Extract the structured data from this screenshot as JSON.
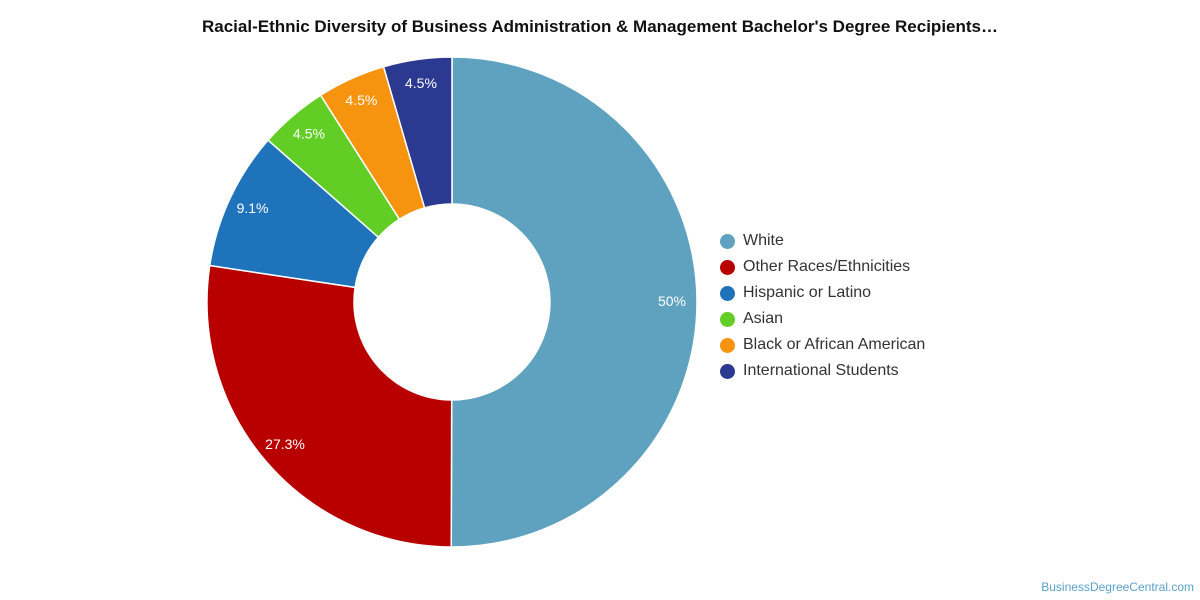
{
  "chart_data": {
    "type": "pie",
    "title": "Racial-Ethnic Diversity of Business Administration & Management Bachelor's Degree Recipients…",
    "donut": true,
    "categories": [
      "White",
      "Other Races/Ethnicities",
      "Hispanic or Latino",
      "Asian",
      "Black or African American",
      "International Students"
    ],
    "values": [
      50,
      27.3,
      9.1,
      4.5,
      4.5,
      4.5
    ],
    "labels": [
      "50%",
      "27.3%",
      "9.1%",
      "4.5%",
      "4.5%",
      "4.5%"
    ],
    "colors": [
      "#5ea2bf",
      "#b80000",
      "#1f73ba",
      "#62ce25",
      "#f7940f",
      "#2b3990"
    ],
    "legend_position": "right"
  },
  "watermark": "BusinessDegreeCentral.com"
}
